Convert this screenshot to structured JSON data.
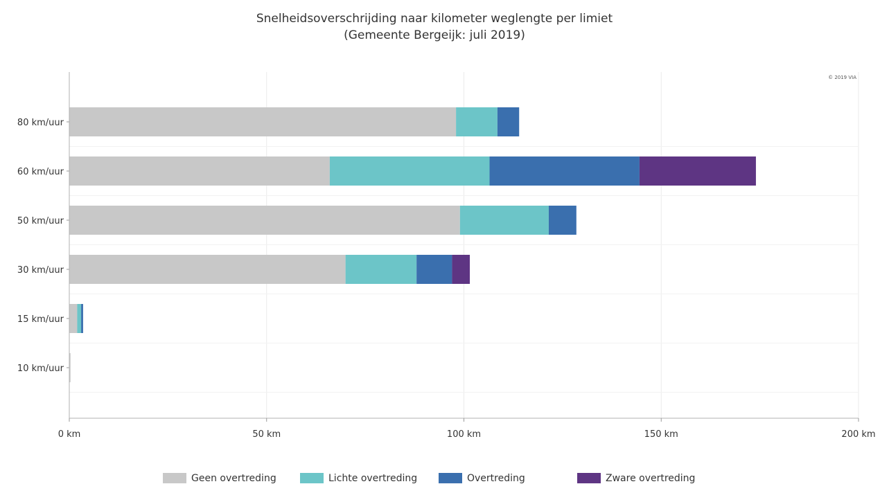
{
  "chart_data": {
    "type": "bar",
    "orientation": "horizontal",
    "stacked": true,
    "title": "Snelheidsoverschrijding naar kilometer weglengte per limiet",
    "subtitle": "(Gemeente Bergeijk: juli 2019)",
    "credit": "© 2019 VIA",
    "categories": [
      "80 km/uur",
      "60 km/uur",
      "50 km/uur",
      "30 km/uur",
      "15 km/uur",
      "10 km/uur"
    ],
    "series": [
      {
        "name": "Geen overtreding",
        "color": "#c8c8c8",
        "values": [
          98,
          66,
          99,
          70,
          2,
          0.3
        ]
      },
      {
        "name": "Lichte overtreding",
        "color": "#6cc5c8",
        "values": [
          10.5,
          40.5,
          22.5,
          18,
          1,
          0
        ]
      },
      {
        "name": "Overtreding",
        "color": "#3a6fae",
        "values": [
          5.5,
          38,
          7,
          9,
          0.5,
          0
        ]
      },
      {
        "name": "Zware overtreding",
        "color": "#5e3583",
        "values": [
          0,
          29.5,
          0,
          4.5,
          0,
          0
        ]
      }
    ],
    "xlim": [
      0,
      200
    ],
    "xticks": [
      0,
      50,
      100,
      150,
      200
    ],
    "xtick_labels": [
      "0 km",
      "50 km",
      "100 km",
      "150 km",
      "200 km"
    ],
    "xlabel": "",
    "ylabel": "",
    "grid": true,
    "legend_position": "bottom"
  }
}
